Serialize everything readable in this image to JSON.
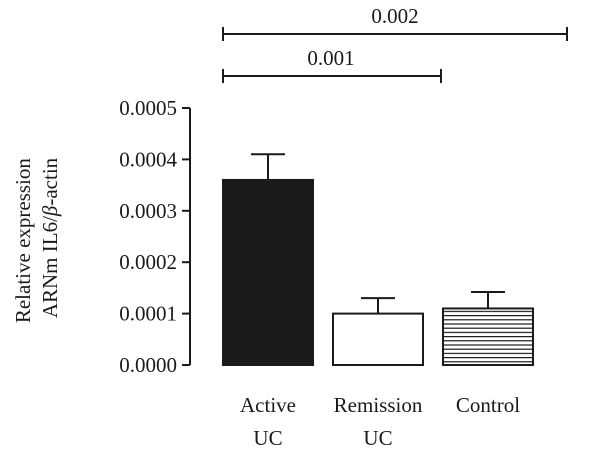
{
  "chart_data": {
    "type": "bar",
    "title": "",
    "xlabel": "",
    "ylabel": {
      "line1": "Relative expression",
      "line2_prefix": "ARNm IL6/",
      "line2_beta": "β",
      "line2_suffix": "-actin"
    },
    "ylim": [
      0,
      0.0005
    ],
    "yticks": [
      "0.0000",
      "0.0001",
      "0.0002",
      "0.0003",
      "0.0004",
      "0.0005"
    ],
    "ytick_values": [
      0,
      0.0001,
      0.0002,
      0.0003,
      0.0004,
      0.0005
    ],
    "categories": [
      {
        "line1": "Active",
        "line2": "UC"
      },
      {
        "line1": "Remission",
        "line2": "UC"
      },
      {
        "line1": "Control",
        "line2": ""
      }
    ],
    "values": [
      0.00036,
      0.0001,
      0.00011
    ],
    "error_upper": [
      0.00041,
      0.00013,
      0.000142
    ],
    "bar_fill": [
      "solid",
      "empty",
      "horizontal-stripes"
    ],
    "colors": {
      "solid": "#1a1a1a",
      "outline": "#1a1a1a",
      "empty": "#ffffff"
    },
    "annotations": [
      {
        "label": "0.001",
        "from_category": 0,
        "to_category": 1
      },
      {
        "label": "0.002",
        "from_category": 0,
        "to_category": 2
      }
    ]
  }
}
